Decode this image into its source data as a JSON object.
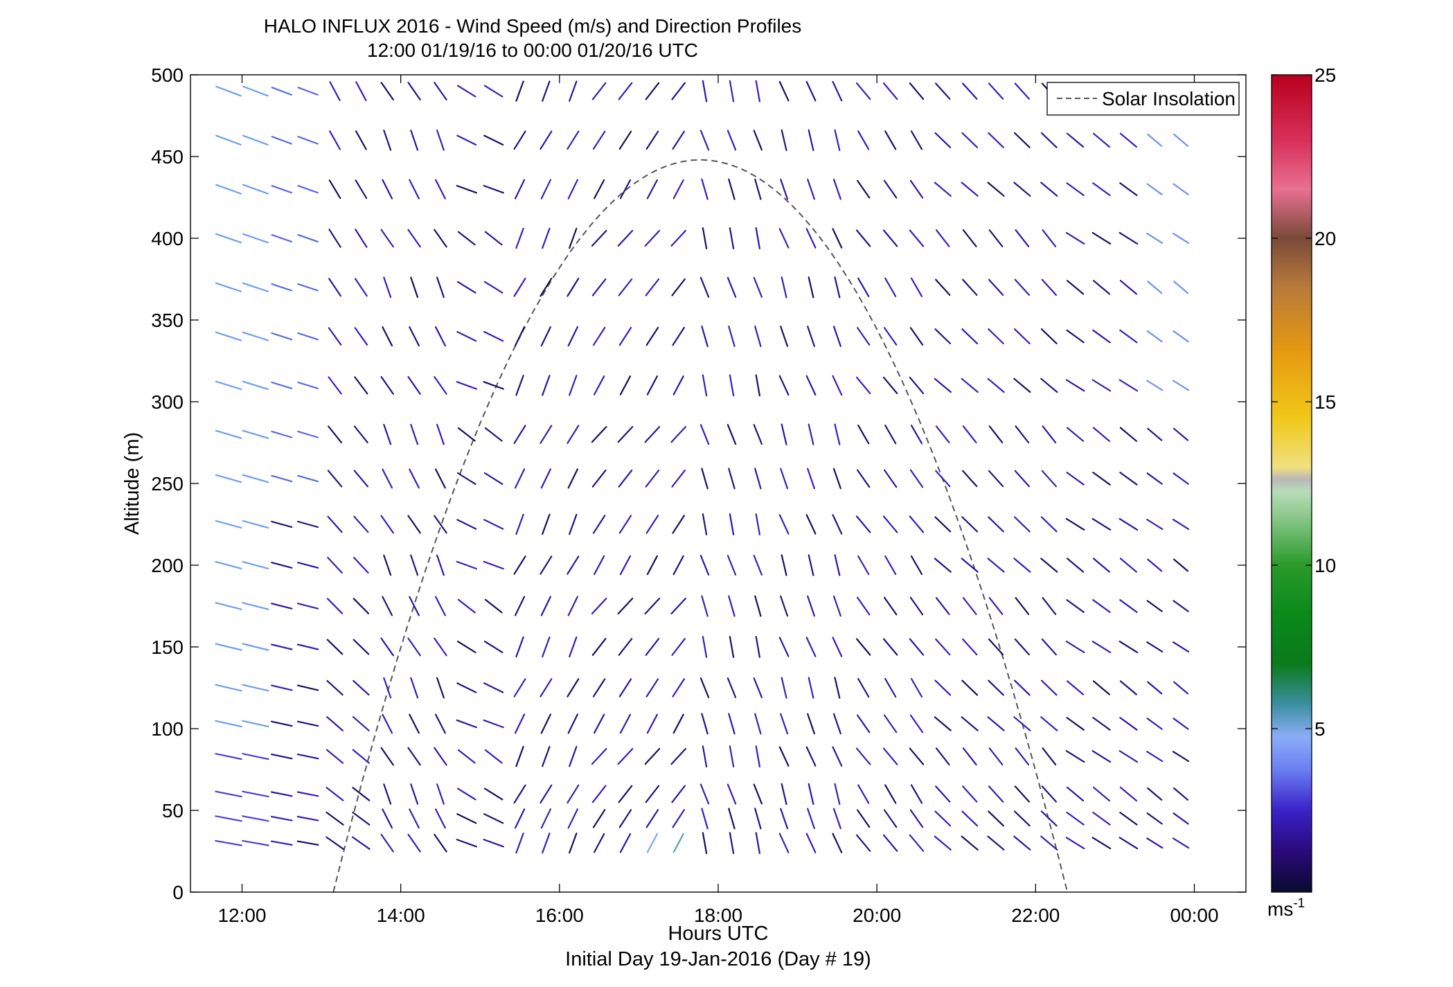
{
  "chart_data": {
    "type": "wind-profile",
    "title": "HALO INFLUX 2016 - Wind Speed (m/s) and Direction Profiles",
    "subtitle": "12:00 01/19/16 to 00:00 01/20/16  UTC",
    "xlabel": "Hours UTC",
    "xlabel2": "Initial Day 19-Jan-2016 (Day # 19)",
    "ylabel": "Altitude (m)",
    "xlim": [
      11.35,
      24.65
    ],
    "ylim": [
      0,
      500
    ],
    "x_ticks": [
      {
        "value": 12,
        "label": "12:00"
      },
      {
        "value": 14,
        "label": "14:00"
      },
      {
        "value": 16,
        "label": "16:00"
      },
      {
        "value": 18,
        "label": "18:00"
      },
      {
        "value": 20,
        "label": "20:00"
      },
      {
        "value": 22,
        "label": "22:00"
      },
      {
        "value": 24,
        "label": "00:00"
      }
    ],
    "y_ticks": [
      {
        "value": 0,
        "label": "0"
      },
      {
        "value": 50,
        "label": "50"
      },
      {
        "value": 100,
        "label": "100"
      },
      {
        "value": 150,
        "label": "150"
      },
      {
        "value": 200,
        "label": "200"
      },
      {
        "value": 250,
        "label": "250"
      },
      {
        "value": 300,
        "label": "300"
      },
      {
        "value": 350,
        "label": "350"
      },
      {
        "value": 400,
        "label": "400"
      },
      {
        "value": 450,
        "label": "450"
      },
      {
        "value": 500,
        "label": "500"
      }
    ],
    "legend": {
      "label": "Solar Insolation",
      "position": "top-right"
    },
    "colorbar": {
      "range": [
        0,
        25
      ],
      "tick_labels": [
        {
          "value": 5,
          "label": "5"
        },
        {
          "value": 10,
          "label": "10"
        },
        {
          "value": 15,
          "label": "15"
        },
        {
          "value": 20,
          "label": "20"
        },
        {
          "value": 25,
          "label": "25"
        }
      ],
      "unit": "ms",
      "unit_exponent": "-1"
    },
    "solar_insolation": {
      "start_hour": 13.15,
      "end_hour": 22.4,
      "peak_hour": 17.8,
      "peak_altitude": 448
    },
    "wind": {
      "hours": [
        11.83,
        12.17,
        12.5,
        12.83,
        13.17,
        13.5,
        13.83,
        14.17,
        14.5,
        14.83,
        15.17,
        15.5,
        15.83,
        16.17,
        16.5,
        16.83,
        17.17,
        17.5,
        17.83,
        18.17,
        18.5,
        18.83,
        19.17,
        19.5,
        19.83,
        20.17,
        20.5,
        20.83,
        21.17,
        21.5,
        21.83,
        22.17,
        22.5,
        22.83,
        23.17,
        23.5,
        23.83
      ],
      "levels": [
        30,
        45,
        60,
        83,
        103,
        125,
        150,
        175,
        200,
        225,
        253,
        280,
        310,
        340,
        370,
        400,
        430,
        460,
        490
      ]
    }
  }
}
